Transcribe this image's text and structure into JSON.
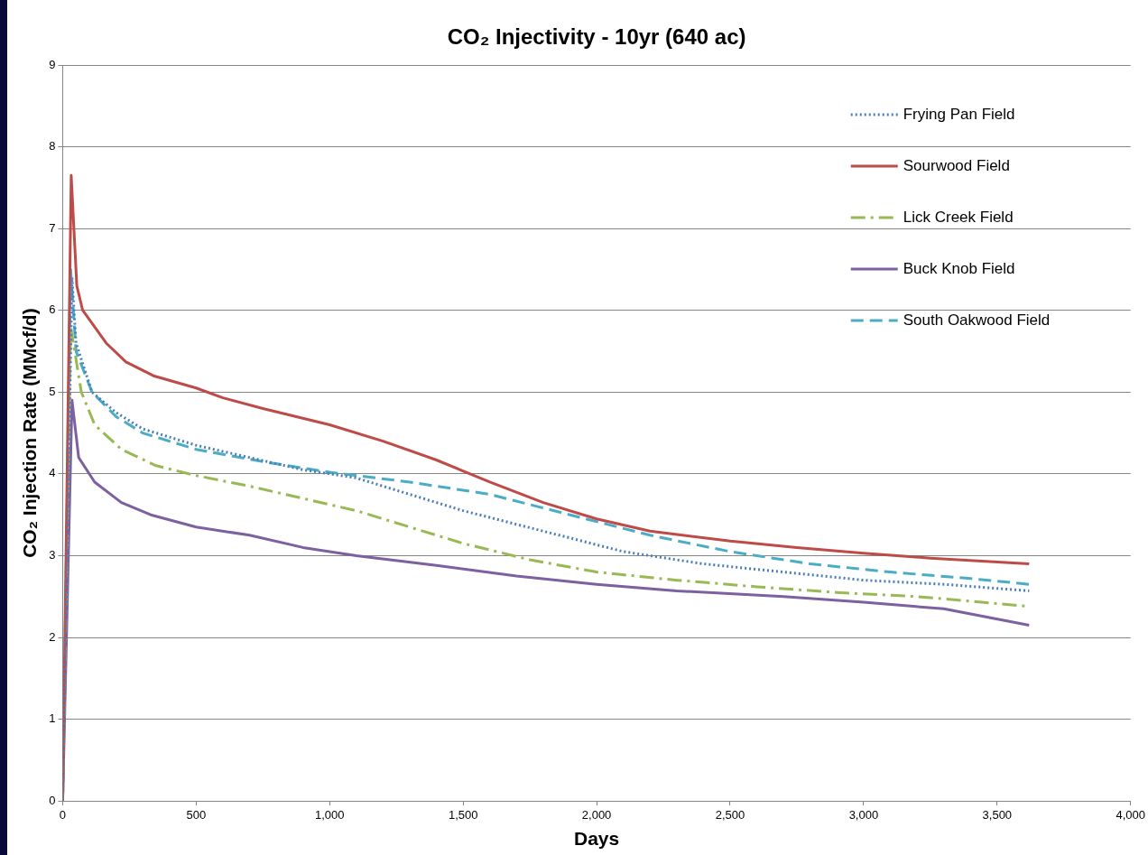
{
  "chart_data": {
    "type": "line",
    "title": "CO₂ Injectivity - 10yr (640 ac)",
    "xlabel": "Days",
    "ylabel": "CO₂ Injection Rate (MMcf/d)",
    "xlim": [
      0,
      4000
    ],
    "xticks": [
      0,
      500,
      {
        "value": 1000,
        "label": "1,000"
      },
      {
        "value": 1500,
        "label": "1,500"
      },
      {
        "value": 2000,
        "label": "2,000"
      },
      {
        "value": 2500,
        "label": "2,500"
      },
      {
        "value": 3000,
        "label": "3,000"
      },
      {
        "value": 3500,
        "label": "3,500"
      },
      {
        "value": 4000,
        "label": "4,000"
      }
    ],
    "ylim": [
      0,
      9
    ],
    "yticks": [
      0,
      1,
      2,
      3,
      4,
      5,
      6,
      7,
      8,
      9
    ],
    "grid": "y",
    "legend": "top right",
    "marker": "none",
    "series": [
      {
        "name": "Frying Pan Field",
        "color": "#4a7ebb",
        "line_style": "dotted",
        "x": [
          0,
          35,
          50,
          110,
          200,
          300,
          500,
          700,
          900,
          1100,
          1300,
          1500,
          1800,
          2100,
          2400,
          2700,
          3000,
          3300,
          3620
        ],
        "values": [
          0,
          6.4,
          5.6,
          5.0,
          4.75,
          4.55,
          4.35,
          4.2,
          4.05,
          3.95,
          3.75,
          3.55,
          3.3,
          3.05,
          2.9,
          2.8,
          2.7,
          2.65,
          2.57
        ]
      },
      {
        "name": "Sourwood Field",
        "color": "#be4b48",
        "line_style": "solid",
        "x": [
          0,
          32,
          53,
          75,
          163,
          237,
          340,
          500,
          600,
          750,
          1000,
          1200,
          1400,
          1600,
          1800,
          2000,
          2200,
          2500,
          2750,
          3000,
          3250,
          3620
        ],
        "values": [
          0,
          7.65,
          6.3,
          6.0,
          5.6,
          5.37,
          5.2,
          5.05,
          4.93,
          4.8,
          4.6,
          4.4,
          4.17,
          3.9,
          3.65,
          3.45,
          3.3,
          3.18,
          3.1,
          3.03,
          2.97,
          2.9
        ]
      },
      {
        "name": "Lick Creek Field",
        "color": "#98b954",
        "line_style": "dashdot",
        "x": [
          0,
          30,
          70,
          120,
          220,
          350,
          500,
          700,
          900,
          1100,
          1300,
          1500,
          1750,
          2000,
          2300,
          2600,
          2900,
          3200,
          3620
        ],
        "values": [
          0,
          5.8,
          5.0,
          4.6,
          4.3,
          4.1,
          3.98,
          3.85,
          3.7,
          3.55,
          3.35,
          3.15,
          2.95,
          2.8,
          2.7,
          2.62,
          2.55,
          2.5,
          2.38
        ]
      },
      {
        "name": "Buck Knob Field",
        "color": "#7d60a0",
        "line_style": "solid",
        "x": [
          0,
          35,
          60,
          120,
          220,
          330,
          500,
          700,
          900,
          1100,
          1400,
          1700,
          2000,
          2300,
          2700,
          3000,
          3300,
          3620
        ],
        "values": [
          0,
          4.9,
          4.2,
          3.9,
          3.65,
          3.5,
          3.35,
          3.25,
          3.1,
          3.0,
          2.88,
          2.75,
          2.65,
          2.57,
          2.5,
          2.43,
          2.35,
          2.15
        ]
      },
      {
        "name": "South Oakwood Field",
        "color": "#4bacc6",
        "line_style": "dashed",
        "x": [
          0,
          30,
          50,
          110,
          200,
          300,
          500,
          750,
          1000,
          1300,
          1600,
          1900,
          2200,
          2500,
          2800,
          3100,
          3400,
          3620
        ],
        "values": [
          0,
          6.5,
          5.5,
          5.0,
          4.7,
          4.5,
          4.3,
          4.15,
          4.02,
          3.9,
          3.75,
          3.5,
          3.25,
          3.05,
          2.9,
          2.8,
          2.72,
          2.65
        ]
      }
    ]
  }
}
